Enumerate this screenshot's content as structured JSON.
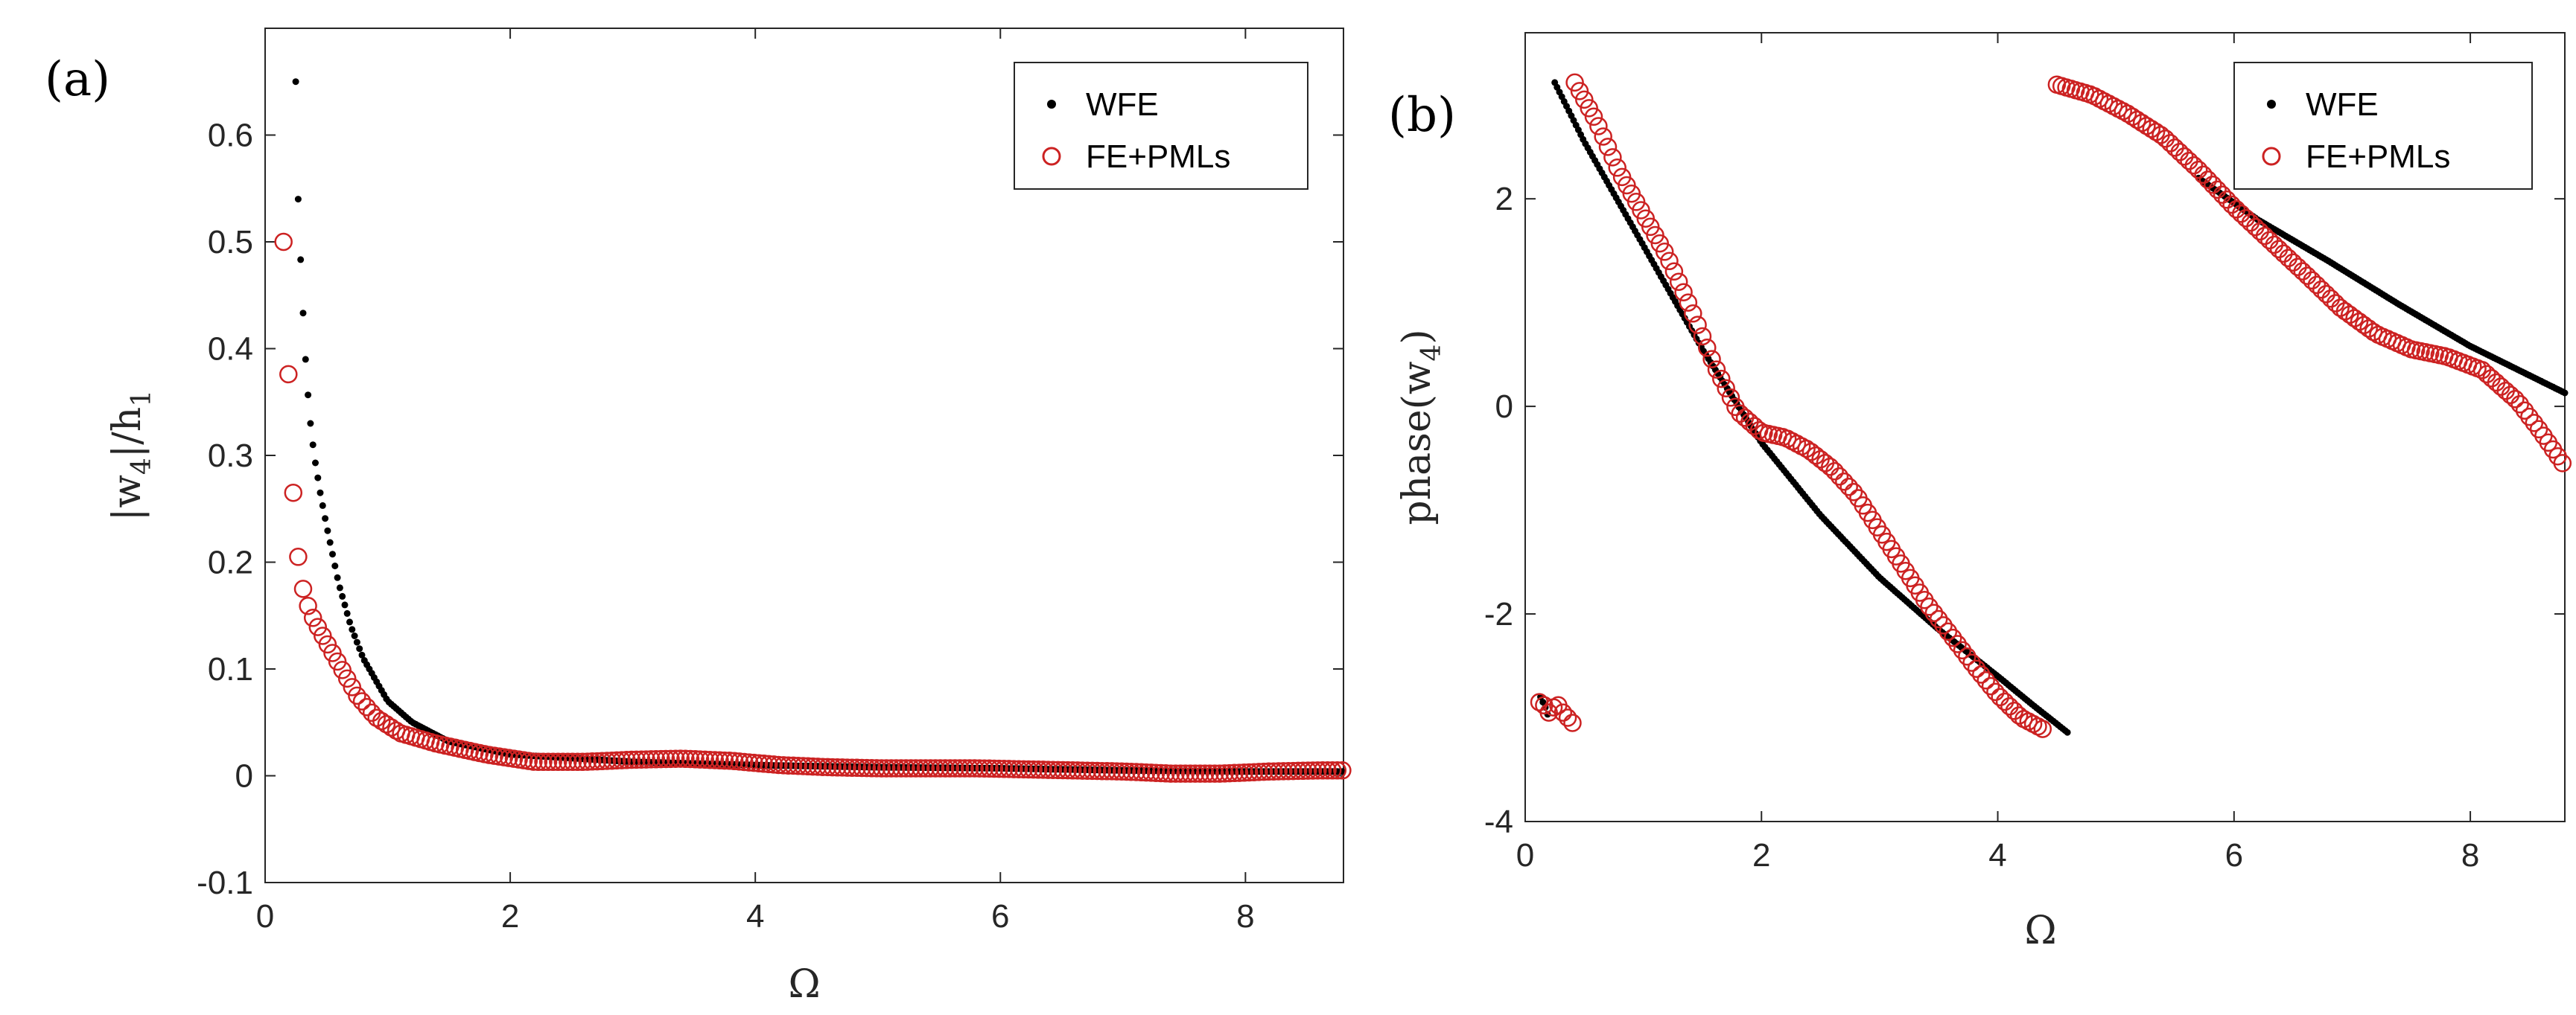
{
  "chart_data": [
    {
      "panel_label": "(a)",
      "type": "scatter",
      "xlabel": "Ω",
      "ylabel_main": "|w",
      "ylabel_sub1": "4",
      "ylabel_mid": "|/h",
      "ylabel_sub2": "1",
      "xlim": [
        0,
        8.8
      ],
      "ylim": [
        -0.1,
        0.7
      ],
      "xticks": [
        "0",
        "2",
        "4",
        "6",
        "8"
      ],
      "xtick_values": [
        0,
        2,
        4,
        6,
        8
      ],
      "yticks": [
        "-0.1",
        "0",
        "0.1",
        "0.2",
        "0.3",
        "0.4",
        "0.5",
        "0.6"
      ],
      "ytick_values": [
        -0.1,
        0,
        0.1,
        0.2,
        0.3,
        0.4,
        0.5,
        0.6
      ],
      "legend_position": "top-right",
      "series": [
        {
          "name": "WFE",
          "marker": "dot",
          "color": "#000000",
          "x": [
            0.25,
            0.27,
            0.3,
            0.33,
            0.36,
            0.4,
            0.45,
            0.5,
            0.6,
            0.7,
            0.8,
            1.0,
            1.2,
            1.5,
            2.0,
            3.0,
            4.0,
            5.0,
            6.0,
            7.0,
            8.0,
            8.8
          ],
          "y": [
            0.65,
            0.54,
            0.455,
            0.39,
            0.34,
            0.3,
            0.265,
            0.235,
            0.18,
            0.14,
            0.11,
            0.07,
            0.05,
            0.032,
            0.02,
            0.013,
            0.01,
            0.008,
            0.007,
            0.005,
            0.004,
            0.004
          ]
        },
        {
          "name": "FE+PMLs",
          "marker": "circle",
          "color": "#cc2222",
          "x": [
            0.15,
            0.2,
            0.23,
            0.26,
            0.29,
            0.33,
            0.38,
            0.45,
            0.55,
            0.65,
            0.75,
            0.9,
            1.1,
            1.4,
            1.8,
            2.2,
            2.6,
            3.0,
            3.4,
            3.8,
            4.2,
            4.6,
            5.0,
            5.4,
            5.8,
            6.2,
            6.6,
            7.0,
            7.4,
            7.8,
            8.2,
            8.6,
            8.8
          ],
          "y": [
            0.5,
            0.345,
            0.265,
            0.215,
            0.185,
            0.165,
            0.15,
            0.135,
            0.115,
            0.095,
            0.075,
            0.055,
            0.04,
            0.03,
            0.02,
            0.013,
            0.013,
            0.015,
            0.016,
            0.014,
            0.01,
            0.008,
            0.007,
            0.007,
            0.007,
            0.006,
            0.005,
            0.004,
            0.002,
            0.002,
            0.004,
            0.005,
            0.005
          ]
        }
      ]
    },
    {
      "panel_label": "(b)",
      "type": "scatter",
      "xlabel": "Ω",
      "ylabel_main": "phase(w",
      "ylabel_sub": "4",
      "ylabel_end": ")",
      "xlim": [
        0,
        8.8
      ],
      "ylim": [
        -4,
        3.6
      ],
      "xticks": [
        "0",
        "2",
        "4",
        "6",
        "8"
      ],
      "xtick_values": [
        0,
        2,
        4,
        6,
        8
      ],
      "yticks": [
        "-4",
        "-2",
        "0",
        "2"
      ],
      "ytick_values": [
        -4,
        -2,
        0,
        2
      ],
      "legend_position": "top-right",
      "series": [
        {
          "name": "WFE",
          "marker": "dot",
          "color": "#000000",
          "segments": [
            {
              "x": [
                0.13,
                0.17,
                0.2
              ],
              "y": [
                -2.8,
                -2.9,
                -3.0
              ]
            },
            {
              "x": [
                0.25,
                0.5,
                1.0,
                1.5,
                2.0,
                2.5,
                3.0,
                3.5,
                4.0,
                4.3,
                4.6
              ],
              "y": [
                3.12,
                2.55,
                1.55,
                0.55,
                -0.35,
                -1.05,
                -1.65,
                -2.15,
                -2.6,
                -2.88,
                -3.15
              ]
            },
            {
              "x": [
                5.7,
                6.2,
                6.8,
                7.4,
                8.0,
                8.8
              ],
              "y": [
                2.2,
                1.8,
                1.4,
                0.98,
                0.58,
                0.13
              ]
            }
          ]
        },
        {
          "name": "FE+PMLs",
          "marker": "circle",
          "color": "#cc2222",
          "segments": [
            {
              "x": [
                0.12,
                0.16,
                0.2,
                0.24,
                0.28,
                0.32,
                0.36,
                0.4
              ],
              "y": [
                -2.85,
                -2.88,
                -2.95,
                -2.9,
                -2.88,
                -2.95,
                -3.0,
                -3.05
              ]
            },
            {
              "x": [
                0.42,
                0.6,
                0.8,
                1.0,
                1.2,
                1.4,
                1.6,
                1.8,
                2.0,
                2.2,
                2.4,
                2.6,
                2.8,
                3.0,
                3.2,
                3.4,
                3.6,
                3.8,
                4.0,
                4.2,
                4.4
              ],
              "y": [
                3.12,
                2.75,
                2.25,
                1.85,
                1.45,
                0.95,
                0.4,
                -0.05,
                -0.25,
                -0.3,
                -0.42,
                -0.6,
                -0.85,
                -1.2,
                -1.55,
                -1.9,
                -2.2,
                -2.5,
                -2.78,
                -3.0,
                -3.12
              ]
            },
            {
              "x": [
                4.5,
                4.8,
                5.1,
                5.4,
                5.7,
                6.0,
                6.3,
                6.6,
                6.9,
                7.2,
                7.5,
                7.8,
                8.1,
                8.4,
                8.6,
                8.8
              ],
              "y": [
                3.1,
                3.0,
                2.82,
                2.6,
                2.28,
                1.92,
                1.6,
                1.28,
                0.95,
                0.7,
                0.55,
                0.48,
                0.35,
                0.05,
                -0.25,
                -0.58
              ]
            }
          ]
        }
      ]
    }
  ]
}
